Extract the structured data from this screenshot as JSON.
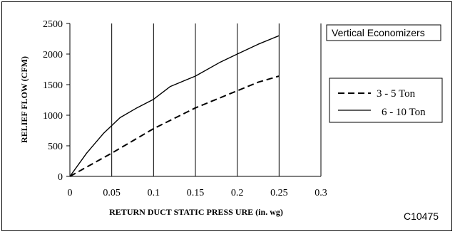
{
  "chart_data": {
    "type": "line",
    "xlabel": "RETURN DUCT STATIC PRESS URE (in. wg)",
    "ylabel": "RELIEF FLOW (CFM)",
    "xlim": [
      0,
      0.3
    ],
    "ylim": [
      0,
      2500
    ],
    "xticks": [
      "0",
      "0.05",
      "0.1",
      "0.15",
      "0.2",
      "0.25",
      "0.3"
    ],
    "yticks": [
      "0",
      "500",
      "1000",
      "1500",
      "2000",
      "2500"
    ],
    "grid": "vertical-only",
    "annotation": "Vertical Economizers",
    "figure_id": "C10475",
    "legend_position": "right",
    "series": [
      {
        "name": "3 - 5 Ton",
        "style": "dashed",
        "color": "#000000",
        "x": [
          0,
          0.05,
          0.1,
          0.15,
          0.2,
          0.225,
          0.25
        ],
        "y": [
          0,
          380,
          780,
          1120,
          1400,
          1540,
          1640
        ]
      },
      {
        "name": "6 - 10 Ton",
        "style": "solid",
        "color": "#000000",
        "x": [
          0,
          0.02,
          0.04,
          0.06,
          0.08,
          0.1,
          0.12,
          0.15,
          0.18,
          0.2,
          0.225,
          0.25
        ],
        "y": [
          0,
          380,
          700,
          960,
          1120,
          1260,
          1470,
          1640,
          1870,
          2000,
          2160,
          2300
        ]
      }
    ]
  }
}
